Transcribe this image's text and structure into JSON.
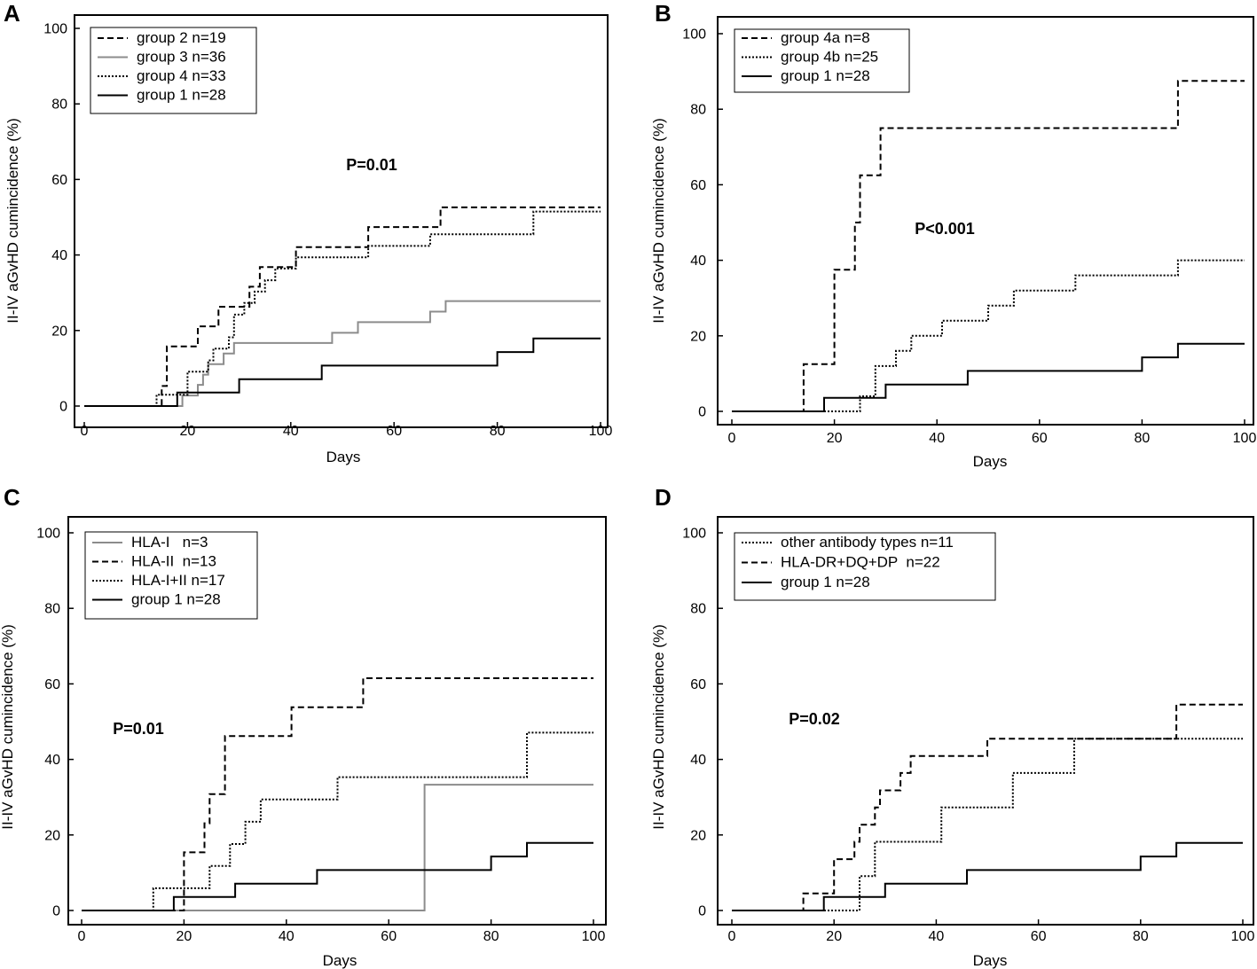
{
  "figure": {
    "y_axis_label": "II-IV aGvHD cumincidence (%)",
    "x_axis_label": "Days",
    "x_ticks": [
      "0",
      "20",
      "40",
      "60",
      "80",
      "100"
    ],
    "y_ticks": [
      "0",
      "20",
      "40",
      "60",
      "80",
      "100"
    ]
  },
  "colors": {
    "black": "#000000",
    "gray": "#8c8c8c"
  },
  "chart_data": [
    {
      "type": "line",
      "panel": "A",
      "title": "",
      "xlabel": "Days",
      "ylabel": "II-IV aGvHD cumincidence (%)",
      "xlim": [
        0,
        100
      ],
      "ylim": [
        0,
        100
      ],
      "p_value": "P=0.01",
      "legend_position": "top-left",
      "series": [
        {
          "name": "group 2 n=19",
          "style": "dashed",
          "color": "black",
          "steps": [
            [
              0,
              0
            ],
            [
              15,
              0
            ],
            [
              15,
              5.3
            ],
            [
              16,
              5.3
            ],
            [
              16,
              15.8
            ],
            [
              22,
              15.8
            ],
            [
              22,
              21.1
            ],
            [
              26,
              21.1
            ],
            [
              26,
              26.3
            ],
            [
              32,
              26.3
            ],
            [
              32,
              31.6
            ],
            [
              34,
              31.6
            ],
            [
              34,
              36.8
            ],
            [
              41,
              36.8
            ],
            [
              41,
              42.1
            ],
            [
              55,
              42.1
            ],
            [
              55,
              47.4
            ],
            [
              69,
              47.4
            ],
            [
              69,
              52.6
            ],
            [
              100,
              52.6
            ]
          ]
        },
        {
          "name": "group 3 n=36",
          "style": "solid",
          "color": "gray",
          "steps": [
            [
              0,
              0
            ],
            [
              19,
              0
            ],
            [
              19,
              2.8
            ],
            [
              22,
              2.8
            ],
            [
              22,
              5.6
            ],
            [
              23,
              5.6
            ],
            [
              23,
              8.3
            ],
            [
              24,
              8.3
            ],
            [
              24,
              11.1
            ],
            [
              27,
              11.1
            ],
            [
              27,
              13.9
            ],
            [
              29,
              13.9
            ],
            [
              29,
              16.7
            ],
            [
              48,
              16.7
            ],
            [
              48,
              19.4
            ],
            [
              53,
              19.4
            ],
            [
              53,
              22.2
            ],
            [
              67,
              22.2
            ],
            [
              67,
              25
            ],
            [
              70,
              25
            ],
            [
              70,
              27.8
            ],
            [
              100,
              27.8
            ]
          ]
        },
        {
          "name": "group 4 n=33",
          "style": "dotted",
          "color": "black",
          "steps": [
            [
              0,
              0
            ],
            [
              14,
              0
            ],
            [
              14,
              3
            ],
            [
              20,
              3
            ],
            [
              20,
              9.1
            ],
            [
              24,
              9.1
            ],
            [
              24,
              12.1
            ],
            [
              25,
              12.1
            ],
            [
              25,
              15.2
            ],
            [
              28,
              15.2
            ],
            [
              28,
              18.2
            ],
            [
              29,
              18.2
            ],
            [
              29,
              24.2
            ],
            [
              31,
              24.2
            ],
            [
              31,
              27.3
            ],
            [
              33,
              27.3
            ],
            [
              33,
              30.3
            ],
            [
              35,
              30.3
            ],
            [
              35,
              33.3
            ],
            [
              37,
              33.3
            ],
            [
              37,
              36.4
            ],
            [
              41,
              36.4
            ],
            [
              41,
              39.4
            ],
            [
              55,
              39.4
            ],
            [
              55,
              42.4
            ],
            [
              67,
              42.4
            ],
            [
              67,
              45.5
            ],
            [
              87,
              45.5
            ],
            [
              87,
              51.5
            ],
            [
              100,
              51.5
            ]
          ]
        },
        {
          "name": "group 1 n=28",
          "style": "solid",
          "color": "black",
          "steps": [
            [
              0,
              0
            ],
            [
              18,
              0
            ],
            [
              18,
              3.6
            ],
            [
              30,
              3.6
            ],
            [
              30,
              7.1
            ],
            [
              46,
              7.1
            ],
            [
              46,
              10.7
            ],
            [
              80,
              10.7
            ],
            [
              80,
              14.3
            ],
            [
              87,
              14.3
            ],
            [
              87,
              17.9
            ],
            [
              100,
              17.9
            ]
          ]
        }
      ]
    },
    {
      "type": "line",
      "panel": "B",
      "title": "",
      "xlabel": "Days",
      "ylabel": "II-IV aGvHD cumincidence (%)",
      "xlim": [
        0,
        100
      ],
      "ylim": [
        0,
        100
      ],
      "p_value": "P<0.001",
      "legend_position": "top-left",
      "series": [
        {
          "name": "group 4a n=8",
          "style": "dashed",
          "color": "black",
          "steps": [
            [
              0,
              0
            ],
            [
              14,
              0
            ],
            [
              14,
              12.5
            ],
            [
              20,
              12.5
            ],
            [
              20,
              37.5
            ],
            [
              24,
              37.5
            ],
            [
              24,
              50
            ],
            [
              25,
              50
            ],
            [
              25,
              62.5
            ],
            [
              29,
              62.5
            ],
            [
              29,
              75
            ],
            [
              87,
              75
            ],
            [
              87,
              87.5
            ],
            [
              100,
              87.5
            ]
          ]
        },
        {
          "name": "group 4b n=25",
          "style": "dotted",
          "color": "black",
          "steps": [
            [
              0,
              0
            ],
            [
              25,
              0
            ],
            [
              25,
              4
            ],
            [
              28,
              4
            ],
            [
              28,
              12
            ],
            [
              32,
              12
            ],
            [
              32,
              16
            ],
            [
              35,
              16
            ],
            [
              35,
              20
            ],
            [
              41,
              20
            ],
            [
              41,
              24
            ],
            [
              50,
              24
            ],
            [
              50,
              28
            ],
            [
              55,
              28
            ],
            [
              55,
              32
            ],
            [
              67,
              32
            ],
            [
              67,
              36
            ],
            [
              87,
              36
            ],
            [
              87,
              40
            ],
            [
              100,
              40
            ]
          ]
        },
        {
          "name": "group 1 n=28",
          "style": "solid",
          "color": "black",
          "steps": [
            [
              0,
              0
            ],
            [
              18,
              0
            ],
            [
              18,
              3.6
            ],
            [
              30,
              3.6
            ],
            [
              30,
              7.1
            ],
            [
              46,
              7.1
            ],
            [
              46,
              10.7
            ],
            [
              80,
              10.7
            ],
            [
              80,
              14.3
            ],
            [
              87,
              14.3
            ],
            [
              87,
              17.9
            ],
            [
              100,
              17.9
            ]
          ]
        }
      ]
    },
    {
      "type": "line",
      "panel": "C",
      "title": "",
      "xlabel": "Days",
      "ylabel": "II-IV aGvHD cumincidence (%)",
      "xlim": [
        0,
        100
      ],
      "ylim": [
        0,
        100
      ],
      "p_value": "P=0.01",
      "legend_position": "top-left",
      "series": [
        {
          "name": "HLA-I   n=3",
          "style": "solid",
          "color": "gray",
          "steps": [
            [
              0,
              0
            ],
            [
              67,
              0
            ],
            [
              67,
              33.3
            ],
            [
              100,
              33.3
            ]
          ]
        },
        {
          "name": "HLA-II  n=13",
          "style": "dashed",
          "color": "black",
          "steps": [
            [
              0,
              0
            ],
            [
              20,
              0
            ],
            [
              20,
              15.4
            ],
            [
              24,
              15.4
            ],
            [
              24,
              23.1
            ],
            [
              25,
              23.1
            ],
            [
              25,
              30.8
            ],
            [
              28,
              30.8
            ],
            [
              28,
              46.2
            ],
            [
              41,
              46.2
            ],
            [
              41,
              53.8
            ],
            [
              55,
              53.8
            ],
            [
              55,
              61.5
            ],
            [
              100,
              61.5
            ]
          ]
        },
        {
          "name": "HLA-I+II n=17",
          "style": "dotted",
          "color": "black",
          "steps": [
            [
              0,
              0
            ],
            [
              14,
              0
            ],
            [
              14,
              5.9
            ],
            [
              25,
              5.9
            ],
            [
              25,
              11.8
            ],
            [
              29,
              11.8
            ],
            [
              29,
              17.6
            ],
            [
              32,
              17.6
            ],
            [
              32,
              23.5
            ],
            [
              35,
              23.5
            ],
            [
              35,
              29.4
            ],
            [
              50,
              29.4
            ],
            [
              50,
              35.3
            ],
            [
              87,
              35.3
            ],
            [
              87,
              47.1
            ],
            [
              100,
              47.1
            ]
          ]
        },
        {
          "name": "group 1 n=28",
          "style": "solid",
          "color": "black",
          "steps": [
            [
              0,
              0
            ],
            [
              18,
              0
            ],
            [
              18,
              3.6
            ],
            [
              30,
              3.6
            ],
            [
              30,
              7.1
            ],
            [
              46,
              7.1
            ],
            [
              46,
              10.7
            ],
            [
              80,
              10.7
            ],
            [
              80,
              14.3
            ],
            [
              87,
              14.3
            ],
            [
              87,
              17.9
            ],
            [
              100,
              17.9
            ]
          ]
        }
      ]
    },
    {
      "type": "line",
      "panel": "D",
      "title": "",
      "xlabel": "Days",
      "ylabel": "II-IV aGvHD cumincidence (%)",
      "xlim": [
        0,
        100
      ],
      "ylim": [
        0,
        100
      ],
      "p_value": "P=0.02",
      "legend_position": "top-left",
      "series": [
        {
          "name": "other antibody types n=11",
          "style": "dotted",
          "color": "black",
          "steps": [
            [
              0,
              0
            ],
            [
              25,
              0
            ],
            [
              25,
              9.1
            ],
            [
              28,
              9.1
            ],
            [
              28,
              18.2
            ],
            [
              41,
              18.2
            ],
            [
              41,
              27.3
            ],
            [
              55,
              27.3
            ],
            [
              55,
              36.4
            ],
            [
              67,
              36.4
            ],
            [
              67,
              45.5
            ],
            [
              100,
              45.5
            ]
          ]
        },
        {
          "name": "HLA-DR+DQ+DP  n=22",
          "style": "dashed",
          "color": "black",
          "steps": [
            [
              0,
              0
            ],
            [
              14,
              0
            ],
            [
              14,
              4.5
            ],
            [
              20,
              4.5
            ],
            [
              20,
              13.6
            ],
            [
              24,
              13.6
            ],
            [
              24,
              18.2
            ],
            [
              25,
              18.2
            ],
            [
              25,
              22.7
            ],
            [
              28,
              22.7
            ],
            [
              28,
              27.3
            ],
            [
              29,
              27.3
            ],
            [
              29,
              31.8
            ],
            [
              33,
              31.8
            ],
            [
              33,
              36.4
            ],
            [
              35,
              36.4
            ],
            [
              35,
              40.9
            ],
            [
              50,
              40.9
            ],
            [
              50,
              45.5
            ],
            [
              87,
              45.5
            ],
            [
              87,
              54.5
            ],
            [
              100,
              54.5
            ]
          ]
        },
        {
          "name": "group 1 n=28",
          "style": "solid",
          "color": "black",
          "steps": [
            [
              0,
              0
            ],
            [
              18,
              0
            ],
            [
              18,
              3.6
            ],
            [
              30,
              3.6
            ],
            [
              30,
              7.1
            ],
            [
              46,
              7.1
            ],
            [
              46,
              10.7
            ],
            [
              80,
              10.7
            ],
            [
              80,
              14.3
            ],
            [
              87,
              14.3
            ],
            [
              87,
              17.9
            ],
            [
              100,
              17.9
            ]
          ]
        }
      ]
    }
  ]
}
